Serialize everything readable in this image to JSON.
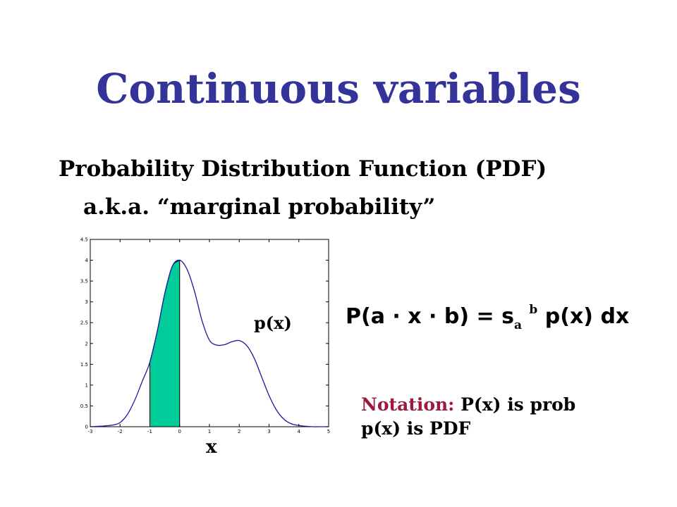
{
  "slide": {
    "title": "Continuous variables",
    "line1": "Probability Distribution Function (PDF)",
    "line2": "a.k.a. “marginal probability”",
    "curve_label": "p(x)",
    "x_axis_label": "x",
    "formula": {
      "left": "P(a · x · b) =",
      "symbol": "s",
      "lower": "a",
      "upper": "b",
      "right": "p(x) dx"
    },
    "notation": {
      "label": "Notation:",
      "text1": "P(x) is prob",
      "text2": "p(x) is PDF"
    }
  },
  "colors": {
    "title": "#33339a",
    "shaded": "#00cc99",
    "notation_label": "#9b1b3c"
  },
  "chart_data": {
    "type": "line",
    "x": [
      -3,
      -2.75,
      -2.5,
      -2.25,
      -2,
      -1.75,
      -1.5,
      -1.25,
      -1,
      -0.75,
      -0.5,
      -0.25,
      0,
      0.25,
      0.5,
      0.75,
      1,
      1.25,
      1.5,
      1.75,
      2,
      2.25,
      2.5,
      2.75,
      3,
      3.25,
      3.5,
      3.75,
      4,
      4.25,
      4.5,
      4.75,
      5
    ],
    "y": [
      0.0,
      0.01,
      0.02,
      0.04,
      0.1,
      0.3,
      0.65,
      1.1,
      1.55,
      2.3,
      3.2,
      3.85,
      4.0,
      3.78,
      3.25,
      2.55,
      2.08,
      1.96,
      1.97,
      2.04,
      2.07,
      1.95,
      1.65,
      1.2,
      0.75,
      0.4,
      0.18,
      0.07,
      0.03,
      0.01,
      0.0,
      0.0,
      0.0
    ],
    "shaded_range": [
      -1,
      0
    ],
    "xlim": [
      -3,
      5
    ],
    "ylim": [
      0,
      4.5
    ],
    "xticks": [
      "-3",
      "-2",
      "-1",
      "0",
      "1",
      "2",
      "3",
      "4",
      "5"
    ],
    "yticks": [
      "0",
      "0.5",
      "1",
      "1.5",
      "2",
      "2.5",
      "3",
      "3.5",
      "4",
      "4.5"
    ],
    "grid": false
  }
}
